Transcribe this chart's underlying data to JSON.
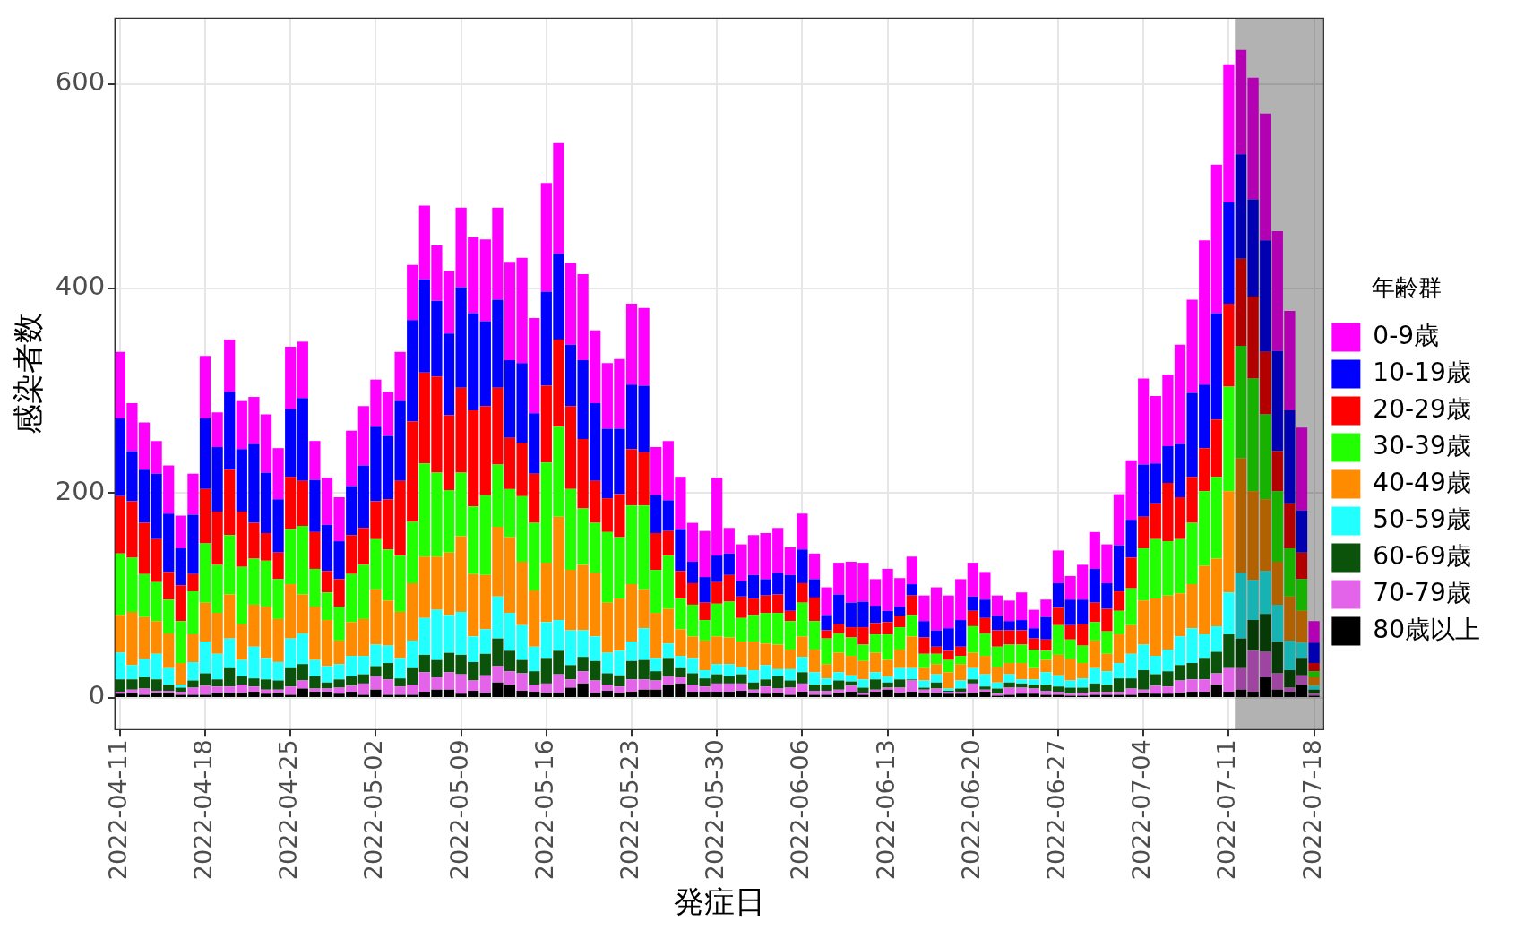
{
  "chart_data": {
    "type": "bar",
    "stacked": true,
    "xlabel": "発症日",
    "ylabel": "感染者数",
    "legend_title": "年齢群",
    "legend": "right",
    "grid": true,
    "x": [
      "2022-04-11",
      "2022-04-12",
      "2022-04-13",
      "2022-04-14",
      "2022-04-15",
      "2022-04-16",
      "2022-04-17",
      "2022-04-18",
      "2022-04-19",
      "2022-04-20",
      "2022-04-21",
      "2022-04-22",
      "2022-04-23",
      "2022-04-24",
      "2022-04-25",
      "2022-04-26",
      "2022-04-27",
      "2022-04-28",
      "2022-04-29",
      "2022-04-30",
      "2022-05-01",
      "2022-05-02",
      "2022-05-03",
      "2022-05-04",
      "2022-05-05",
      "2022-05-06",
      "2022-05-07",
      "2022-05-08",
      "2022-05-09",
      "2022-05-10",
      "2022-05-11",
      "2022-05-12",
      "2022-05-13",
      "2022-05-14",
      "2022-05-15",
      "2022-05-16",
      "2022-05-17",
      "2022-05-18",
      "2022-05-19",
      "2022-05-20",
      "2022-05-21",
      "2022-05-22",
      "2022-05-23",
      "2022-05-24",
      "2022-05-25",
      "2022-05-26",
      "2022-05-27",
      "2022-05-28",
      "2022-05-29",
      "2022-05-30",
      "2022-05-31",
      "2022-06-01",
      "2022-06-02",
      "2022-06-03",
      "2022-06-04",
      "2022-06-05",
      "2022-06-06",
      "2022-06-07",
      "2022-06-08",
      "2022-06-09",
      "2022-06-10",
      "2022-06-11",
      "2022-06-12",
      "2022-06-13",
      "2022-06-14",
      "2022-06-15",
      "2022-06-16",
      "2022-06-17",
      "2022-06-18",
      "2022-06-19",
      "2022-06-20",
      "2022-06-21",
      "2022-06-22",
      "2022-06-23",
      "2022-06-24",
      "2022-06-25",
      "2022-06-26",
      "2022-06-27",
      "2022-06-28",
      "2022-06-29",
      "2022-06-30",
      "2022-07-01",
      "2022-07-02",
      "2022-07-03",
      "2022-07-04",
      "2022-07-05",
      "2022-07-06",
      "2022-07-07",
      "2022-07-08",
      "2022-07-09",
      "2022-07-10",
      "2022-07-11",
      "2022-07-12",
      "2022-07-13",
      "2022-07-14",
      "2022-07-15",
      "2022-07-16",
      "2022-07-17",
      "2022-07-18"
    ],
    "xlim": [
      "2022-04-10T14:00",
      "2022-07-18T19:00"
    ],
    "xticks": [
      "2022-04-11",
      "2022-04-18",
      "2022-04-25",
      "2022-05-02",
      "2022-05-09",
      "2022-05-16",
      "2022-05-23",
      "2022-05-30",
      "2022-06-06",
      "2022-06-13",
      "2022-06-20",
      "2022-06-27",
      "2022-07-04",
      "2022-07-11",
      "2022-07-18"
    ],
    "ylim": [
      -31,
      664
    ],
    "yticks": [
      0,
      200,
      400,
      600
    ],
    "bands": [
      {
        "axis": "x",
        "from": "2022-07-11T12:00",
        "to": "2022-07-18T19:00"
      }
    ],
    "series": [
      {
        "name": "80歳以上",
        "color": "#000000",
        "values": [
          4,
          5,
          3,
          5,
          5,
          3,
          3,
          3,
          5,
          5,
          5,
          6,
          4,
          5,
          3,
          9,
          6,
          6,
          4,
          6,
          3,
          8,
          3,
          3,
          3,
          6,
          8,
          8,
          4,
          7,
          5,
          15,
          13,
          7,
          6,
          5,
          5,
          10,
          14,
          5,
          7,
          5,
          6,
          8,
          8,
          13,
          14,
          6,
          6,
          6,
          6,
          7,
          5,
          4,
          5,
          3,
          6,
          3,
          3,
          5,
          6,
          3,
          6,
          8,
          5,
          6,
          5,
          5,
          4,
          4,
          5,
          6,
          2,
          3,
          4,
          4,
          3,
          3,
          2,
          2,
          3,
          3,
          3,
          3,
          5,
          4,
          4,
          5,
          6,
          6,
          13,
          6,
          8,
          6,
          20,
          8,
          6,
          13,
          2
        ]
      },
      {
        "name": "70-79歳",
        "color": "#e364e8",
        "values": [
          2,
          3,
          6,
          2,
          2,
          3,
          7,
          9,
          6,
          6,
          8,
          5,
          4,
          3,
          8,
          8,
          3,
          3,
          6,
          6,
          11,
          13,
          15,
          8,
          10,
          19,
          12,
          17,
          19,
          10,
          17,
          16,
          13,
          17,
          7,
          9,
          18,
          8,
          12,
          12,
          6,
          6,
          12,
          10,
          9,
          8,
          6,
          7,
          5,
          8,
          8,
          7,
          3,
          7,
          4,
          7,
          8,
          4,
          4,
          3,
          6,
          2,
          2,
          2,
          5,
          11,
          3,
          4,
          2,
          2,
          9,
          2,
          2,
          7,
          6,
          5,
          4,
          3,
          2,
          3,
          3,
          3,
          3,
          6,
          3,
          8,
          7,
          12,
          12,
          12,
          11,
          23,
          21,
          40,
          25,
          16,
          4,
          9,
          2
        ]
      },
      {
        "name": "60-69歳",
        "color": "#0b520b",
        "values": [
          12,
          10,
          11,
          11,
          6,
          4,
          7,
          12,
          7,
          18,
          8,
          8,
          10,
          9,
          18,
          16,
          12,
          6,
          8,
          9,
          9,
          10,
          16,
          8,
          16,
          17,
          17,
          19,
          19,
          18,
          21,
          27,
          20,
          13,
          13,
          25,
          23,
          14,
          14,
          19,
          11,
          11,
          18,
          19,
          9,
          18,
          9,
          11,
          8,
          9,
          7,
          9,
          7,
          7,
          12,
          7,
          11,
          6,
          6,
          9,
          4,
          5,
          10,
          5,
          8,
          1,
          2,
          6,
          1,
          3,
          4,
          3,
          5,
          5,
          4,
          4,
          6,
          5,
          6,
          5,
          8,
          7,
          13,
          10,
          19,
          11,
          15,
          15,
          16,
          21,
          21,
          33,
          29,
          30,
          37,
          31,
          17,
          17,
          4
        ]
      },
      {
        "name": "50-59歳",
        "color": "#22ffff",
        "values": [
          26,
          14,
          18,
          25,
          16,
          3,
          18,
          31,
          25,
          29,
          16,
          31,
          21,
          18,
          29,
          30,
          16,
          16,
          15,
          20,
          18,
          21,
          17,
          20,
          27,
          36,
          49,
          37,
          42,
          25,
          24,
          41,
          37,
          34,
          24,
          35,
          30,
          34,
          26,
          24,
          20,
          24,
          19,
          31,
          13,
          14,
          12,
          15,
          8,
          10,
          12,
          7,
          12,
          14,
          7,
          11,
          15,
          12,
          6,
          8,
          6,
          8,
          7,
          6,
          11,
          11,
          7,
          8,
          2,
          8,
          11,
          12,
          6,
          8,
          4,
          5,
          12,
          11,
          7,
          9,
          15,
          13,
          15,
          24,
          25,
          18,
          21,
          28,
          34,
          23,
          25,
          41,
          64,
          39,
          42,
          36,
          29,
          15,
          4
        ]
      },
      {
        "name": "40-49歳",
        "color": "#ff8c00",
        "values": [
          37,
          52,
          41,
          32,
          34,
          21,
          27,
          38,
          40,
          43,
          35,
          41,
          50,
          42,
          53,
          38,
          52,
          45,
          23,
          33,
          36,
          54,
          44,
          45,
          56,
          60,
          52,
          61,
          74,
          61,
          53,
          68,
          74,
          62,
          55,
          58,
          101,
          59,
          64,
          62,
          49,
          51,
          56,
          38,
          44,
          34,
          26,
          21,
          29,
          27,
          26,
          25,
          28,
          21,
          24,
          19,
          20,
          22,
          14,
          19,
          19,
          18,
          19,
          16,
          18,
          31,
          12,
          10,
          16,
          16,
          15,
          18,
          15,
          11,
          16,
          11,
          12,
          20,
          21,
          15,
          27,
          17,
          28,
          28,
          43,
          56,
          53,
          42,
          43,
          67,
          66,
          99,
          112,
          87,
          70,
          42,
          43,
          31,
          8
        ]
      },
      {
        "name": "30-39歳",
        "color": "#22ff00",
        "values": [
          60,
          53,
          42,
          38,
          33,
          41,
          42,
          58,
          47,
          58,
          56,
          45,
          45,
          39,
          54,
          67,
          37,
          27,
          33,
          47,
          53,
          49,
          50,
          55,
          60,
          91,
          82,
          61,
          62,
          66,
          78,
          61,
          47,
          64,
          66,
          98,
          88,
          79,
          55,
          49,
          69,
          60,
          77,
          82,
          42,
          52,
          30,
          31,
          20,
          32,
          35,
          23,
          26,
          30,
          31,
          28,
          33,
          28,
          25,
          19,
          18,
          16,
          18,
          25,
          22,
          21,
          14,
          10,
          12,
          8,
          26,
          22,
          20,
          18,
          18,
          18,
          9,
          29,
          19,
          17,
          18,
          22,
          23,
          36,
          51,
          58,
          53,
          53,
          60,
          73,
          80,
          102,
          110,
          110,
          83,
          69,
          47,
          31,
          6
        ]
      },
      {
        "name": "20-29歳",
        "color": "#ff0000",
        "values": [
          56,
          55,
          50,
          42,
          27,
          35,
          17,
          53,
          52,
          64,
          54,
          35,
          27,
          26,
          51,
          44,
          36,
          21,
          27,
          38,
          36,
          37,
          49,
          73,
          98,
          89,
          94,
          73,
          83,
          94,
          87,
          75,
          50,
          52,
          48,
          75,
          85,
          81,
          68,
          41,
          33,
          42,
          55,
          52,
          36,
          24,
          27,
          21,
          17,
          21,
          26,
          21,
          16,
          17,
          18,
          10,
          19,
          23,
          8,
          9,
          10,
          17,
          11,
          12,
          11,
          19,
          16,
          7,
          9,
          9,
          15,
          15,
          16,
          14,
          14,
          11,
          11,
          17,
          14,
          21,
          19,
          22,
          19,
          30,
          31,
          35,
          57,
          41,
          45,
          42,
          56,
          81,
          85,
          80,
          61,
          39,
          44,
          26,
          8
        ]
      },
      {
        "name": "10-19歳",
        "color": "#0000ff",
        "values": [
          76,
          49,
          52,
          64,
          57,
          36,
          58,
          69,
          63,
          76,
          61,
          77,
          59,
          52,
          66,
          81,
          51,
          45,
          37,
          48,
          61,
          73,
          62,
          78,
          99,
          91,
          74,
          80,
          98,
          95,
          83,
          86,
          76,
          78,
          59,
          92,
          84,
          60,
          77,
          76,
          68,
          64,
          63,
          65,
          37,
          30,
          41,
          21,
          25,
          26,
          21,
          15,
          23,
          16,
          21,
          35,
          33,
          18,
          15,
          29,
          24,
          25,
          17,
          11,
          9,
          11,
          16,
          16,
          22,
          26,
          14,
          18,
          14,
          9,
          10,
          10,
          22,
          24,
          25,
          24,
          33,
          25,
          45,
          37,
          51,
          39,
          36,
          52,
          82,
          62,
          104,
          99,
          102,
          95,
          109,
          98,
          91,
          41,
          20
        ]
      },
      {
        "name": "0-9歳",
        "color": "#ff00ff",
        "values": [
          65,
          47,
          46,
          32,
          47,
          32,
          40,
          61,
          34,
          51,
          47,
          46,
          57,
          50,
          61,
          55,
          38,
          46,
          43,
          54,
          58,
          46,
          43,
          48,
          54,
          72,
          54,
          61,
          78,
          74,
          80,
          90,
          96,
          103,
          93,
          106,
          108,
          80,
          84,
          71,
          64,
          68,
          79,
          76,
          47,
          58,
          51,
          38,
          45,
          76,
          25,
          36,
          39,
          45,
          44,
          27,
          35,
          25,
          27,
          31,
          40,
          38,
          26,
          41,
          28,
          27,
          25,
          42,
          32,
          40,
          33,
          27,
          20,
          20,
          27,
          18,
          17,
          32,
          23,
          34,
          36,
          38,
          50,
          58,
          84,
          66,
          70,
          97,
          91,
          141,
          145,
          135,
          102,
          119,
          124,
          117,
          97,
          81,
          21
        ]
      }
    ]
  }
}
